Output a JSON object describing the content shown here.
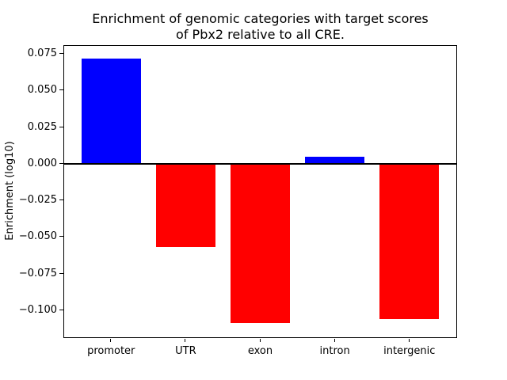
{
  "title": {
    "line1": "Enrichment of genomic categories with target scores",
    "line2": "of Pbx2 relative to all CRE."
  },
  "chart_data": {
    "type": "bar",
    "title": "Enrichment of genomic categories with target scores\nof Pbx2 relative to all CRE.",
    "xlabel": "",
    "ylabel": "Enrichment (log10)",
    "categories": [
      "promoter",
      "UTR",
      "exon",
      "intron",
      "intergenic"
    ],
    "values": [
      0.072,
      -0.057,
      -0.109,
      0.005,
      -0.106
    ],
    "bar_colors": [
      "#0000ff",
      "#ff0000",
      "#ff0000",
      "#0000ff",
      "#ff0000"
    ],
    "positive_color": "#0000ff",
    "negative_color": "#ff0000",
    "yticks": [
      0.075,
      0.05,
      0.025,
      0.0,
      -0.025,
      -0.05,
      -0.075,
      -0.1
    ],
    "ylim": [
      -0.119,
      0.081
    ],
    "zero_line": true,
    "zero_line_color": "#000000",
    "grid": false,
    "legend": null,
    "background_color": "#ffffff",
    "spine_color": "#000000"
  }
}
